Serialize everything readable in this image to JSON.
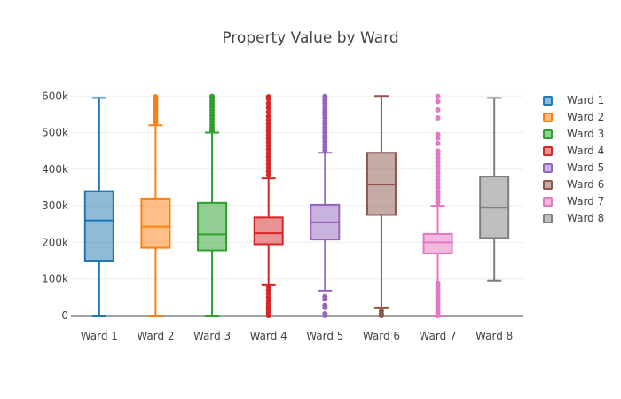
{
  "chart_data": {
    "type": "box",
    "title": "Property Value by Ward",
    "xlabel": "",
    "ylabel": "",
    "ylim": [
      0,
      620000
    ],
    "y_ticks": [
      0,
      100000,
      200000,
      300000,
      400000,
      500000,
      600000
    ],
    "y_tick_labels": [
      "0",
      "100k",
      "200k",
      "300k",
      "400k",
      "500k",
      "600k"
    ],
    "categories": [
      "Ward 1",
      "Ward 2",
      "Ward 3",
      "Ward 4",
      "Ward 5",
      "Ward 6",
      "Ward 7",
      "Ward 8"
    ],
    "legend_position": "right",
    "grid": true,
    "series": [
      {
        "name": "Ward 1",
        "color": "#1f77b4",
        "min": 0,
        "q1": 150000,
        "median": 260000,
        "q3": 340000,
        "max": 595000,
        "outliers": []
      },
      {
        "name": "Ward 2",
        "color": "#ff7f0e",
        "min": 0,
        "q1": 185000,
        "median": 243000,
        "q3": 320000,
        "max": 520000,
        "outliers": [
          528000,
          536000,
          544000,
          552000,
          560000,
          568000,
          576000,
          584000,
          592000,
          598000
        ]
      },
      {
        "name": "Ward 3",
        "color": "#2ca02c",
        "min": 0,
        "q1": 178000,
        "median": 222000,
        "q3": 308000,
        "max": 500000,
        "outliers": [
          506000,
          514000,
          522000,
          530000,
          538000,
          546000,
          554000,
          562000,
          570000,
          578000,
          586000,
          594000,
          599000
        ]
      },
      {
        "name": "Ward 4",
        "color": "#d62728",
        "min": 85000,
        "q1": 195000,
        "median": 225000,
        "q3": 268000,
        "max": 375000,
        "outliers": [
          0,
          8000,
          16000,
          24000,
          32000,
          40000,
          50000,
          60000,
          70000,
          80000,
          384000,
          394000,
          404000,
          414000,
          424000,
          434000,
          444000,
          454000,
          464000,
          474000,
          484000,
          494000,
          504000,
          514000,
          524000,
          534000,
          544000,
          556000,
          568000,
          580000,
          592000,
          598000
        ]
      },
      {
        "name": "Ward 5",
        "color": "#9467bd",
        "min": 68000,
        "q1": 208000,
        "median": 255000,
        "q3": 303000,
        "max": 445000,
        "outliers": [
          0,
          5000,
          22000,
          28000,
          45000,
          52000,
          452000,
          460000,
          468000,
          476000,
          484000,
          492000,
          500000,
          508000,
          516000,
          524000,
          532000,
          540000,
          548000,
          556000,
          564000,
          572000,
          580000,
          588000,
          595000,
          599000
        ]
      },
      {
        "name": "Ward 6",
        "color": "#8c564b",
        "min": 22000,
        "q1": 275000,
        "median": 358000,
        "q3": 445000,
        "max": 600000,
        "outliers": [
          0,
          5000,
          12000
        ]
      },
      {
        "name": "Ward 7",
        "color": "#e377c2",
        "min": 0,
        "q1": 170000,
        "median": 200000,
        "q3": 223000,
        "max": 300000,
        "outliers": [
          0,
          8000,
          16000,
          24000,
          32000,
          40000,
          48000,
          56000,
          64000,
          72000,
          80000,
          88000,
          308000,
          316000,
          324000,
          332000,
          340000,
          350000,
          360000,
          370000,
          380000,
          390000,
          400000,
          410000,
          420000,
          430000,
          440000,
          450000,
          470000,
          485000,
          495000,
          540000,
          562000,
          585000,
          599000
        ]
      },
      {
        "name": "Ward 8",
        "color": "#7f7f7f",
        "min": 95000,
        "q1": 212000,
        "median": 295000,
        "q3": 380000,
        "max": 595000,
        "outliers": []
      }
    ]
  }
}
